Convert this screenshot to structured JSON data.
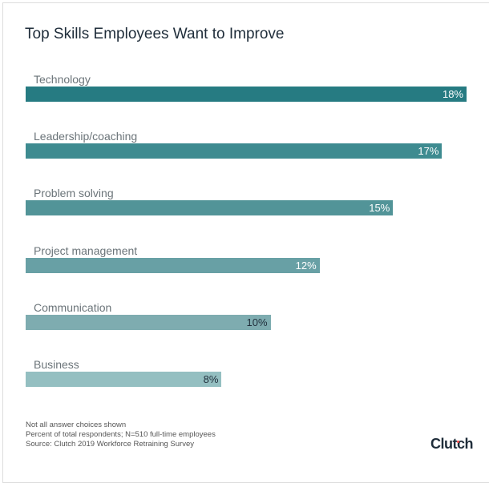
{
  "chart_data": {
    "type": "bar",
    "orientation": "horizontal",
    "title": "Top Skills Employees Want to Improve",
    "categories": [
      "Technology",
      "Leadership/coaching",
      "Problem solving",
      "Project management",
      "Communication",
      "Business"
    ],
    "values": [
      18,
      17,
      15,
      12,
      10,
      8
    ],
    "value_labels": [
      "18%",
      "17%",
      "15%",
      "12%",
      "10%",
      "8%"
    ],
    "unit": "%",
    "xlim": [
      0,
      18
    ],
    "grid": false,
    "colors": [
      "#267b82",
      "#3e8b90",
      "#529498",
      "#68a0a5",
      "#7eacb0",
      "#94bfc1"
    ],
    "label_colors": [
      "#ffffff",
      "#ffffff",
      "#ffffff",
      "#ffffff",
      "#1f2d3a",
      "#1f2d3a"
    ]
  },
  "footnotes": [
    "Not all answer choices shown",
    "Percent of total respondents; N=510 full-time employees",
    "Source: Clutch 2019 Workforce Retraining Survey"
  ],
  "logo": "Clutch"
}
